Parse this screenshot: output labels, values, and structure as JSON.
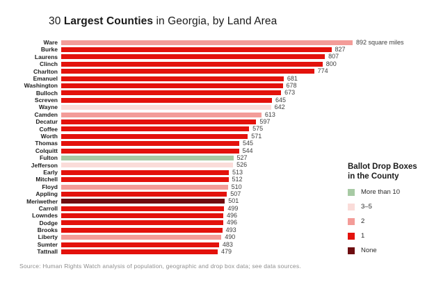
{
  "title": {
    "prefix": "30 ",
    "bold": "Largest Counties",
    "suffix": " in Georgia, by Land Area"
  },
  "source_note": "Source: Human Rights Watch analysis of population, geographic and drop box data; see data sources.",
  "legend": {
    "title_line1": "Ballot Drop Boxes",
    "title_line2": "in the County",
    "items": [
      {
        "label": "More than 10",
        "key": "more-than-10",
        "color": "#a7caa4"
      },
      {
        "label": "3–5",
        "key": "3-5",
        "color": "#fadcd9"
      },
      {
        "label": "2",
        "key": "2",
        "color": "#f39c98"
      },
      {
        "label": "1",
        "key": "1",
        "color": "#e3120c"
      },
      {
        "label": "None",
        "key": "none",
        "color": "#6e0d10"
      }
    ]
  },
  "chart_data": {
    "type": "bar",
    "orientation": "horizontal",
    "title": "30 Largest Counties in Georgia, by Land Area",
    "xlabel": "",
    "ylabel": "",
    "xlim": [
      0,
      892
    ],
    "grid": false,
    "legend_position": "right",
    "first_bar_unit_suffix": " square miles",
    "categories": [
      "Ware",
      "Burke",
      "Laurens",
      "Clinch",
      "Charlton",
      "Emanuel",
      "Washington",
      "Bulloch",
      "Screven",
      "Wayne",
      "Camden",
      "Decatur",
      "Coffee",
      "Worth",
      "Thomas",
      "Colquitt",
      "Fulton",
      "Jefferson",
      "Early",
      "Mitchell",
      "Floyd",
      "Appling",
      "Meriwether",
      "Carroll",
      "Lowndes",
      "Dodge",
      "Brooks",
      "Liberty",
      "Sumter",
      "Tattnall"
    ],
    "values": [
      892,
      827,
      807,
      800,
      774,
      681,
      678,
      673,
      645,
      642,
      613,
      597,
      575,
      571,
      545,
      544,
      527,
      526,
      513,
      512,
      510,
      507,
      501,
      499,
      496,
      496,
      493,
      490,
      483,
      479
    ],
    "drop_box_category": [
      "2",
      "1",
      "1",
      "1",
      "1",
      "1",
      "1",
      "1",
      "1",
      "3-5",
      "2",
      "1",
      "1",
      "1",
      "1",
      "1",
      "more-than-10",
      "3-5",
      "1",
      "1",
      "2",
      "1",
      "none",
      "1",
      "1",
      "1",
      "1",
      "2",
      "1",
      "1"
    ],
    "colors": {
      "more-than-10": "#a7caa4",
      "3-5": "#fadcd9",
      "2": "#f39c98",
      "1": "#e3120c",
      "none": "#6e0d10"
    }
  }
}
